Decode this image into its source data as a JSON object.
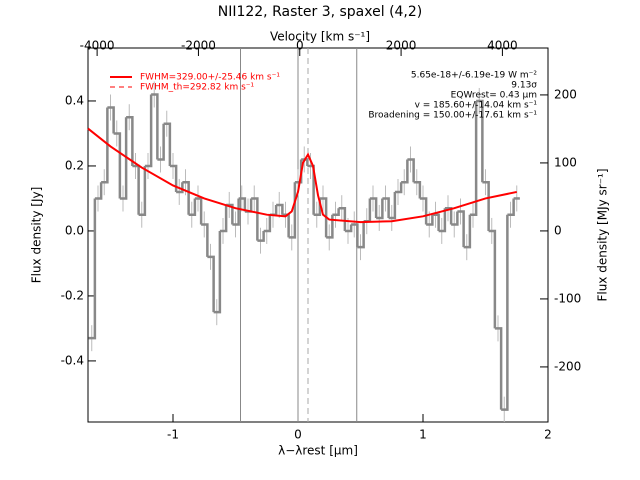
{
  "chart_data": {
    "type": "step",
    "title": "NII122, Raster 3, spaxel (4,2)",
    "x_label": "λ−λrest [μm]",
    "x2_label": "Velocity [km s⁻¹]",
    "y_label": "Flux density [Jy]",
    "y2_label": "Flux density [MJy sr⁻¹]",
    "xlim": [
      -1.68,
      2.0
    ],
    "xticks": [
      -1,
      0,
      1,
      2
    ],
    "x2lim": [
      -4180,
      4900
    ],
    "x2ticks": [
      -4000,
      -2000,
      0,
      2000,
      4000
    ],
    "ylim": [
      -0.588,
      0.563
    ],
    "yticks": [
      {
        "value": -0.4,
        "label": "-0.4"
      },
      {
        "value": -0.2,
        "label": "-0.2"
      },
      {
        "value": 0,
        "label": "0.0"
      },
      {
        "value": 0.2,
        "label": "0.2"
      },
      {
        "value": 0.4,
        "label": "0.4"
      }
    ],
    "y2lim": [
      -281,
      269
    ],
    "y2ticks": [
      -200,
      -100,
      0,
      100,
      200
    ],
    "x": [
      -1.65,
      -1.6,
      -1.55,
      -1.5,
      -1.45,
      -1.4,
      -1.35,
      -1.3,
      -1.25,
      -1.2,
      -1.15,
      -1.1,
      -1.05,
      -1.0,
      -0.95,
      -0.9,
      -0.85,
      -0.8,
      -0.75,
      -0.7,
      -0.65,
      -0.6,
      -0.55,
      -0.5,
      -0.45,
      -0.4,
      -0.35,
      -0.3,
      -0.25,
      -0.2,
      -0.15,
      -0.1,
      -0.05,
      0.0,
      0.05,
      0.1,
      0.15,
      0.2,
      0.25,
      0.3,
      0.35,
      0.4,
      0.45,
      0.5,
      0.55,
      0.6,
      0.65,
      0.7,
      0.75,
      0.8,
      0.85,
      0.9,
      0.95,
      1.0,
      1.05,
      1.1,
      1.15,
      1.2,
      1.25,
      1.3,
      1.35,
      1.4,
      1.45,
      1.5,
      1.55,
      1.6,
      1.65,
      1.7,
      1.75
    ],
    "series": [
      {
        "name": "spectrum",
        "color": "#888888",
        "values": [
          -0.33,
          0.1,
          0.15,
          0.38,
          0.3,
          0.1,
          0.35,
          0.2,
          0.05,
          0.2,
          0.42,
          0.22,
          0.33,
          0.2,
          0.12,
          0.15,
          0.05,
          0.1,
          0.02,
          -0.08,
          -0.25,
          0.0,
          0.08,
          0.02,
          0.1,
          0.06,
          0.1,
          -0.03,
          0.0,
          0.05,
          0.08,
          0.05,
          -0.02,
          0.15,
          0.22,
          0.2,
          0.05,
          0.1,
          -0.02,
          0.05,
          0.07,
          0.0,
          0.02,
          -0.05,
          0.03,
          0.1,
          0.04,
          0.1,
          0.04,
          0.12,
          0.15,
          0.22,
          0.15,
          0.1,
          0.02,
          0.05,
          0.0,
          0.07,
          0.02,
          0.06,
          -0.05,
          0.05,
          0.4,
          0.15,
          0.0,
          -0.3,
          -0.55,
          0.05,
          0.1
        ],
        "errors": [
          0.04,
          0.04,
          0.04,
          0.04,
          0.04,
          0.04,
          0.04,
          0.04,
          0.04,
          0.04,
          0.04,
          0.04,
          0.04,
          0.04,
          0.04,
          0.04,
          0.04,
          0.04,
          0.04,
          0.04,
          0.04,
          0.04,
          0.04,
          0.04,
          0.04,
          0.04,
          0.04,
          0.04,
          0.04,
          0.04,
          0.04,
          0.04,
          0.04,
          0.04,
          0.04,
          0.04,
          0.04,
          0.04,
          0.04,
          0.04,
          0.04,
          0.04,
          0.04,
          0.04,
          0.04,
          0.04,
          0.04,
          0.04,
          0.04,
          0.04,
          0.04,
          0.04,
          0.04,
          0.04,
          0.04,
          0.04,
          0.04,
          0.04,
          0.04,
          0.04,
          0.04,
          0.04,
          0.04,
          0.04,
          0.04,
          0.04,
          0.04,
          0.04,
          0.04
        ]
      }
    ],
    "fit": {
      "name": "FWHM=329.00+/-25.46 km s⁻¹",
      "color": "#ff0000",
      "x": [
        -1.68,
        -1.5,
        -1.25,
        -1.0,
        -0.75,
        -0.5,
        -0.25,
        -0.1,
        -0.05,
        0.0,
        0.04,
        0.08,
        0.12,
        0.16,
        0.2,
        0.25,
        0.5,
        0.75,
        1.0,
        1.25,
        1.5,
        1.75
      ],
      "values": [
        0.315,
        0.26,
        0.195,
        0.14,
        0.1,
        0.07,
        0.05,
        0.045,
        0.06,
        0.12,
        0.21,
        0.235,
        0.2,
        0.11,
        0.05,
        0.035,
        0.027,
        0.03,
        0.045,
        0.07,
        0.1,
        0.12
      ]
    },
    "fit_th": {
      "name": "FWHM_th=292.82 km s⁻¹",
      "color": "#ff0000"
    },
    "vlines": [
      -0.46,
      0.0,
      0.47
    ],
    "vline_dashed": 0.08,
    "annotations": [
      "5.65e-18+/-6.19e-19 W m⁻²",
      "9.13σ",
      "EQWrest= 0.43 μm",
      "v = 185.60+/-14.04 km s⁻¹",
      "Broadening = 150.00+/-17.61 km s⁻¹"
    ]
  }
}
